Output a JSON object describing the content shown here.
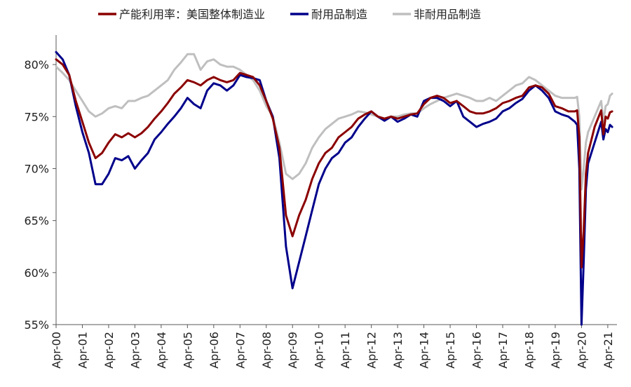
{
  "chart_data": {
    "type": "line",
    "title": "",
    "xlabel": "",
    "ylabel": "",
    "ylim": [
      55,
      82.5
    ],
    "y_ticks": [
      55,
      60,
      65,
      70,
      75,
      80
    ],
    "y_tick_labels": [
      "55%",
      "60%",
      "65%",
      "70%",
      "75%",
      "80%"
    ],
    "x_range": [
      2000.25,
      2021.6
    ],
    "x_ticks": [
      "Apr-00",
      "Apr-01",
      "Apr-02",
      "Apr-03",
      "Apr-04",
      "Apr-05",
      "Apr-06",
      "Apr-07",
      "Apr-08",
      "Apr-09",
      "Apr-10",
      "Apr-11",
      "Apr-12",
      "Apr-13",
      "Apr-14",
      "Apr-15",
      "Apr-16",
      "Apr-17",
      "Apr-18",
      "Apr-19",
      "Apr-20",
      "Apr-21"
    ],
    "grid": false,
    "legend_position": "top",
    "colors": {
      "total": "#8b0000",
      "durable": "#00008b",
      "nondurable": "#bfbfbf"
    },
    "series": [
      {
        "name": "产能利用率：美国整体制造业",
        "color_key": "total",
        "points": [
          [
            "2000-04",
            80.5
          ],
          [
            "2000-07",
            80.0
          ],
          [
            "2000-10",
            79.0
          ],
          [
            "2001-01",
            76.5
          ],
          [
            "2001-04",
            74.5
          ],
          [
            "2001-07",
            72.5
          ],
          [
            "2001-10",
            71.0
          ],
          [
            "2002-01",
            71.5
          ],
          [
            "2002-04",
            72.5
          ],
          [
            "2002-07",
            73.3
          ],
          [
            "2002-10",
            73.0
          ],
          [
            "2003-01",
            73.4
          ],
          [
            "2003-04",
            73.0
          ],
          [
            "2003-07",
            73.4
          ],
          [
            "2003-10",
            74.0
          ],
          [
            "2004-01",
            74.8
          ],
          [
            "2004-04",
            75.5
          ],
          [
            "2004-07",
            76.3
          ],
          [
            "2004-10",
            77.2
          ],
          [
            "2005-01",
            77.8
          ],
          [
            "2005-04",
            78.5
          ],
          [
            "2005-07",
            78.3
          ],
          [
            "2005-10",
            78.0
          ],
          [
            "2006-01",
            78.5
          ],
          [
            "2006-04",
            78.8
          ],
          [
            "2006-07",
            78.5
          ],
          [
            "2006-10",
            78.3
          ],
          [
            "2007-01",
            78.5
          ],
          [
            "2007-04",
            79.2
          ],
          [
            "2007-07",
            79.0
          ],
          [
            "2007-10",
            78.8
          ],
          [
            "2008-01",
            78.0
          ],
          [
            "2008-04",
            76.5
          ],
          [
            "2008-07",
            74.8
          ],
          [
            "2008-10",
            72.0
          ],
          [
            "2009-01",
            65.5
          ],
          [
            "2009-04",
            63.5
          ],
          [
            "2009-07",
            65.5
          ],
          [
            "2009-10",
            67.0
          ],
          [
            "2010-01",
            69.0
          ],
          [
            "2010-04",
            70.5
          ],
          [
            "2010-07",
            71.5
          ],
          [
            "2010-10",
            72.0
          ],
          [
            "2011-01",
            73.0
          ],
          [
            "2011-04",
            73.5
          ],
          [
            "2011-07",
            74.0
          ],
          [
            "2011-10",
            74.8
          ],
          [
            "2012-01",
            75.2
          ],
          [
            "2012-04",
            75.5
          ],
          [
            "2012-07",
            75.0
          ],
          [
            "2012-10",
            74.8
          ],
          [
            "2013-01",
            75.0
          ],
          [
            "2013-04",
            74.8
          ],
          [
            "2013-07",
            75.0
          ],
          [
            "2013-10",
            75.2
          ],
          [
            "2014-01",
            75.3
          ],
          [
            "2014-04",
            76.2
          ],
          [
            "2014-07",
            76.8
          ],
          [
            "2014-10",
            77.0
          ],
          [
            "2015-01",
            76.8
          ],
          [
            "2015-04",
            76.3
          ],
          [
            "2015-07",
            76.5
          ],
          [
            "2015-10",
            76.0
          ],
          [
            "2016-01",
            75.5
          ],
          [
            "2016-04",
            75.3
          ],
          [
            "2016-07",
            75.3
          ],
          [
            "2016-10",
            75.5
          ],
          [
            "2017-01",
            75.8
          ],
          [
            "2017-04",
            76.3
          ],
          [
            "2017-07",
            76.5
          ],
          [
            "2017-10",
            76.8
          ],
          [
            "2018-01",
            77.0
          ],
          [
            "2018-04",
            77.8
          ],
          [
            "2018-07",
            78.0
          ],
          [
            "2018-10",
            77.8
          ],
          [
            "2019-01",
            77.2
          ],
          [
            "2019-04",
            76.0
          ],
          [
            "2019-07",
            75.8
          ],
          [
            "2019-10",
            75.5
          ],
          [
            "2020-01",
            75.5
          ],
          [
            "2020-02",
            75.6
          ],
          [
            "2020-03",
            73.0
          ],
          [
            "2020-04",
            60.5
          ],
          [
            "2020-05",
            64.0
          ],
          [
            "2020-06",
            69.5
          ],
          [
            "2020-07",
            71.5
          ],
          [
            "2020-10",
            74.0
          ],
          [
            "2021-01",
            75.6
          ],
          [
            "2021-02",
            73.3
          ],
          [
            "2021-03",
            75.0
          ],
          [
            "2021-04",
            74.8
          ],
          [
            "2021-05",
            75.4
          ],
          [
            "2021-06",
            75.5
          ]
        ]
      },
      {
        "name": "耐用品制造",
        "color_key": "durable",
        "points": [
          [
            "2000-04",
            81.2
          ],
          [
            "2000-07",
            80.5
          ],
          [
            "2000-10",
            79.0
          ],
          [
            "2001-01",
            76.0
          ],
          [
            "2001-04",
            73.5
          ],
          [
            "2001-07",
            71.5
          ],
          [
            "2001-10",
            68.5
          ],
          [
            "2002-01",
            68.5
          ],
          [
            "2002-04",
            69.5
          ],
          [
            "2002-07",
            71.0
          ],
          [
            "2002-10",
            70.8
          ],
          [
            "2003-01",
            71.2
          ],
          [
            "2003-04",
            70.0
          ],
          [
            "2003-07",
            70.8
          ],
          [
            "2003-10",
            71.5
          ],
          [
            "2004-01",
            72.8
          ],
          [
            "2004-04",
            73.5
          ],
          [
            "2004-07",
            74.3
          ],
          [
            "2004-10",
            75.0
          ],
          [
            "2005-01",
            75.8
          ],
          [
            "2005-04",
            76.8
          ],
          [
            "2005-07",
            76.2
          ],
          [
            "2005-10",
            75.8
          ],
          [
            "2006-01",
            77.5
          ],
          [
            "2006-04",
            78.2
          ],
          [
            "2006-07",
            78.0
          ],
          [
            "2006-10",
            77.5
          ],
          [
            "2007-01",
            78.0
          ],
          [
            "2007-04",
            79.0
          ],
          [
            "2007-07",
            78.8
          ],
          [
            "2007-10",
            78.7
          ],
          [
            "2008-01",
            78.5
          ],
          [
            "2008-04",
            76.5
          ],
          [
            "2008-07",
            75.0
          ],
          [
            "2008-10",
            71.0
          ],
          [
            "2009-01",
            62.5
          ],
          [
            "2009-04",
            58.5
          ],
          [
            "2009-07",
            61.0
          ],
          [
            "2009-10",
            63.5
          ],
          [
            "2010-01",
            66.0
          ],
          [
            "2010-04",
            68.5
          ],
          [
            "2010-07",
            70.0
          ],
          [
            "2010-10",
            71.0
          ],
          [
            "2011-01",
            71.5
          ],
          [
            "2011-04",
            72.5
          ],
          [
            "2011-07",
            73.0
          ],
          [
            "2011-10",
            74.0
          ],
          [
            "2012-01",
            74.8
          ],
          [
            "2012-04",
            75.5
          ],
          [
            "2012-07",
            75.0
          ],
          [
            "2012-10",
            74.6
          ],
          [
            "2013-01",
            75.0
          ],
          [
            "2013-04",
            74.5
          ],
          [
            "2013-07",
            74.8
          ],
          [
            "2013-10",
            75.2
          ],
          [
            "2014-01",
            75.0
          ],
          [
            "2014-04",
            76.5
          ],
          [
            "2014-07",
            76.8
          ],
          [
            "2014-10",
            76.8
          ],
          [
            "2015-01",
            76.5
          ],
          [
            "2015-04",
            76.0
          ],
          [
            "2015-07",
            76.5
          ],
          [
            "2015-10",
            75.0
          ],
          [
            "2016-01",
            74.5
          ],
          [
            "2016-04",
            74.0
          ],
          [
            "2016-07",
            74.3
          ],
          [
            "2016-10",
            74.5
          ],
          [
            "2017-01",
            74.8
          ],
          [
            "2017-04",
            75.5
          ],
          [
            "2017-07",
            75.8
          ],
          [
            "2017-10",
            76.3
          ],
          [
            "2018-01",
            76.7
          ],
          [
            "2018-04",
            77.5
          ],
          [
            "2018-07",
            78.0
          ],
          [
            "2018-10",
            77.5
          ],
          [
            "2019-01",
            76.8
          ],
          [
            "2019-04",
            75.5
          ],
          [
            "2019-07",
            75.2
          ],
          [
            "2019-10",
            75.0
          ],
          [
            "2020-01",
            74.5
          ],
          [
            "2020-02",
            74.2
          ],
          [
            "2020-03",
            70.0
          ],
          [
            "2020-04",
            55.0
          ],
          [
            "2020-05",
            61.0
          ],
          [
            "2020-06",
            68.0
          ],
          [
            "2020-07",
            70.5
          ],
          [
            "2020-10",
            72.5
          ],
          [
            "2021-01",
            74.5
          ],
          [
            "2021-02",
            72.8
          ],
          [
            "2021-03",
            73.8
          ],
          [
            "2021-04",
            73.5
          ],
          [
            "2021-05",
            74.2
          ],
          [
            "2021-06",
            74.0
          ]
        ]
      },
      {
        "name": "非耐用品制造",
        "color_key": "nondurable",
        "points": [
          [
            "2000-04",
            79.8
          ],
          [
            "2000-07",
            79.2
          ],
          [
            "2000-10",
            78.5
          ],
          [
            "2001-01",
            77.5
          ],
          [
            "2001-04",
            76.5
          ],
          [
            "2001-07",
            75.5
          ],
          [
            "2001-10",
            75.0
          ],
          [
            "2002-01",
            75.3
          ],
          [
            "2002-04",
            75.8
          ],
          [
            "2002-07",
            76.0
          ],
          [
            "2002-10",
            75.8
          ],
          [
            "2003-01",
            76.5
          ],
          [
            "2003-04",
            76.5
          ],
          [
            "2003-07",
            76.8
          ],
          [
            "2003-10",
            77.0
          ],
          [
            "2004-01",
            77.5
          ],
          [
            "2004-04",
            78.0
          ],
          [
            "2004-07",
            78.5
          ],
          [
            "2004-10",
            79.5
          ],
          [
            "2005-01",
            80.2
          ],
          [
            "2005-04",
            81.0
          ],
          [
            "2005-07",
            81.0
          ],
          [
            "2005-10",
            79.5
          ],
          [
            "2006-01",
            80.3
          ],
          [
            "2006-04",
            80.5
          ],
          [
            "2006-07",
            80.0
          ],
          [
            "2006-10",
            79.8
          ],
          [
            "2007-01",
            79.8
          ],
          [
            "2007-04",
            79.5
          ],
          [
            "2007-07",
            79.0
          ],
          [
            "2007-10",
            78.5
          ],
          [
            "2008-01",
            77.5
          ],
          [
            "2008-04",
            76.0
          ],
          [
            "2008-07",
            75.0
          ],
          [
            "2008-10",
            72.5
          ],
          [
            "2009-01",
            69.5
          ],
          [
            "2009-04",
            69.0
          ],
          [
            "2009-07",
            69.5
          ],
          [
            "2009-10",
            70.5
          ],
          [
            "2010-01",
            72.0
          ],
          [
            "2010-04",
            73.0
          ],
          [
            "2010-07",
            73.8
          ],
          [
            "2010-10",
            74.3
          ],
          [
            "2011-01",
            74.8
          ],
          [
            "2011-04",
            75.0
          ],
          [
            "2011-07",
            75.2
          ],
          [
            "2011-10",
            75.5
          ],
          [
            "2012-01",
            75.4
          ],
          [
            "2012-04",
            75.2
          ],
          [
            "2012-07",
            75.0
          ],
          [
            "2012-10",
            74.8
          ],
          [
            "2013-01",
            75.0
          ],
          [
            "2013-04",
            75.0
          ],
          [
            "2013-07",
            75.2
          ],
          [
            "2013-10",
            75.3
          ],
          [
            "2014-01",
            75.3
          ],
          [
            "2014-04",
            75.8
          ],
          [
            "2014-07",
            76.2
          ],
          [
            "2014-10",
            76.5
          ],
          [
            "2015-01",
            76.8
          ],
          [
            "2015-04",
            77.0
          ],
          [
            "2015-07",
            77.2
          ],
          [
            "2015-10",
            77.0
          ],
          [
            "2016-01",
            76.8
          ],
          [
            "2016-04",
            76.5
          ],
          [
            "2016-07",
            76.5
          ],
          [
            "2016-10",
            76.8
          ],
          [
            "2017-01",
            76.5
          ],
          [
            "2017-04",
            77.0
          ],
          [
            "2017-07",
            77.5
          ],
          [
            "2017-10",
            78.0
          ],
          [
            "2018-01",
            78.2
          ],
          [
            "2018-04",
            78.8
          ],
          [
            "2018-07",
            78.5
          ],
          [
            "2018-10",
            78.0
          ],
          [
            "2019-01",
            77.5
          ],
          [
            "2019-04",
            77.0
          ],
          [
            "2019-07",
            76.8
          ],
          [
            "2019-10",
            76.8
          ],
          [
            "2020-01",
            76.8
          ],
          [
            "2020-02",
            76.9
          ],
          [
            "2020-03",
            75.0
          ],
          [
            "2020-04",
            68.0
          ],
          [
            "2020-05",
            70.0
          ],
          [
            "2020-06",
            72.5
          ],
          [
            "2020-07",
            73.5
          ],
          [
            "2020-10",
            75.0
          ],
          [
            "2021-01",
            76.5
          ],
          [
            "2021-02",
            74.5
          ],
          [
            "2021-03",
            76.0
          ],
          [
            "2021-04",
            76.2
          ],
          [
            "2021-05",
            77.0
          ],
          [
            "2021-06",
            77.2
          ]
        ]
      }
    ]
  }
}
